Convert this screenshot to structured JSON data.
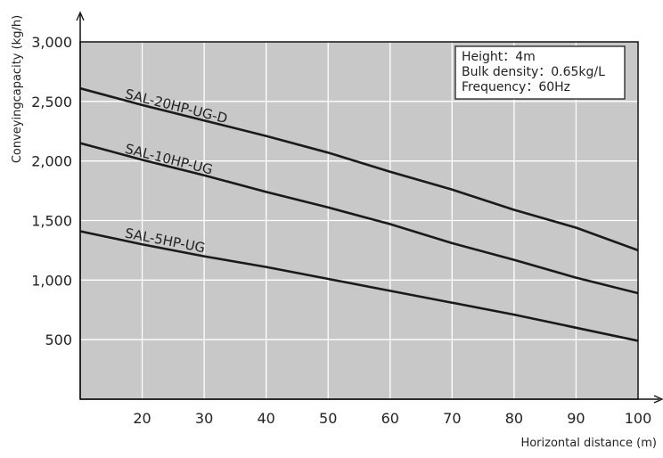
{
  "chart_data": {
    "type": "line",
    "title": "",
    "xlabel": "Horizontal distance (m)",
    "ylabel": "Conveyingcapacity (kg/h)",
    "xlim": [
      10,
      100
    ],
    "ylim": [
      0,
      3000
    ],
    "xticks": [
      20,
      30,
      40,
      50,
      60,
      70,
      80,
      90,
      100
    ],
    "yticks": [
      500,
      1000,
      1500,
      2000,
      2500,
      3000
    ],
    "xtick_labels": [
      "20",
      "30",
      "40",
      "50",
      "60",
      "70",
      "80",
      "90",
      "100"
    ],
    "ytick_labels": [
      "500",
      "1,000",
      "1,500",
      "2,000",
      "2,500",
      "3,000"
    ],
    "grid": true,
    "legend": "none",
    "series": [
      {
        "name": "SAL-20HP-UG-D",
        "x": [
          10,
          20,
          30,
          40,
          50,
          60,
          70,
          80,
          90,
          100
        ],
        "y": [
          2610,
          2470,
          2340,
          2210,
          2070,
          1910,
          1760,
          1590,
          1440,
          1250
        ]
      },
      {
        "name": "SAL-10HP-UG",
        "x": [
          10,
          20,
          30,
          40,
          50,
          60,
          70,
          80,
          90,
          100
        ],
        "y": [
          2150,
          2010,
          1880,
          1740,
          1610,
          1470,
          1310,
          1170,
          1020,
          890
        ]
      },
      {
        "name": "SAL-5HP-UG",
        "x": [
          10,
          20,
          30,
          40,
          50,
          60,
          70,
          80,
          90,
          100
        ],
        "y": [
          1410,
          1300,
          1200,
          1110,
          1010,
          910,
          810,
          710,
          600,
          490
        ]
      }
    ],
    "annotation_lines": [
      "Height：4m",
      "Bulk density：0.65kg/L",
      "Frequency：60Hz"
    ],
    "colors": {
      "plot_background": "#c8c8c8",
      "grid": "#ffffff",
      "line": "#1a1a1a",
      "frame": "#111111"
    }
  }
}
